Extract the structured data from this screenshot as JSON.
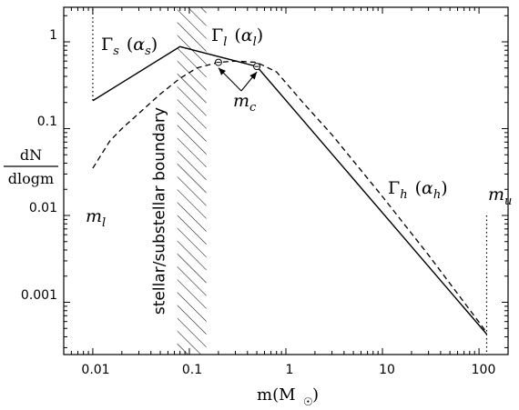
{
  "chart_data": {
    "type": "line",
    "xscale": "log",
    "yscale": "log",
    "xlim": [
      0.005,
      200
    ],
    "ylim": [
      0.00025,
      2.5
    ],
    "xticks": [
      {
        "value": 0.01,
        "label": "0.01"
      },
      {
        "value": 0.1,
        "label": "0.1"
      },
      {
        "value": 1,
        "label": "1"
      },
      {
        "value": 10,
        "label": "10"
      },
      {
        "value": 100,
        "label": "100"
      }
    ],
    "yticks": [
      {
        "value": 0.001,
        "label": "0.001"
      },
      {
        "value": 0.01,
        "label": "0.01"
      },
      {
        "value": 0.1,
        "label": "0.1"
      },
      {
        "value": 1,
        "label": "1"
      }
    ],
    "xlabel": "m(M",
    "xlabel_sub": "☉",
    "xlabel_close": ")",
    "ylabel_num": "dN",
    "ylabel_den": "dlogm",
    "series": [
      {
        "style": "solid",
        "x": [
          0.01,
          0.08,
          0.5,
          120
        ],
        "y": [
          0.21,
          0.88,
          0.52,
          0.00043
        ]
      },
      {
        "style": "dashed",
        "x": [
          0.01,
          0.015,
          0.02,
          0.03,
          0.05,
          0.08,
          0.12,
          0.2,
          0.3,
          0.5,
          0.8,
          1.5,
          3,
          10,
          30,
          120
        ],
        "y": [
          0.035,
          0.072,
          0.1,
          0.15,
          0.25,
          0.38,
          0.5,
          0.58,
          0.6,
          0.58,
          0.45,
          0.2,
          0.085,
          0.0165,
          0.0035,
          0.00045
        ]
      }
    ],
    "boundary": {
      "x_range": [
        0.075,
        0.15
      ],
      "label": "stellar/substellar boundary"
    },
    "vlines": [
      {
        "x": 0.01,
        "y_range": [
          0.01,
          0.21
        ],
        "label": "m",
        "label_sub": "l"
      },
      {
        "x": 120,
        "y_range": [
          0.00025,
          0.01
        ],
        "label": "m",
        "label_sub": "u"
      }
    ],
    "markers": [
      {
        "x": 0.2,
        "y": 0.58
      },
      {
        "x": 0.5,
        "y": 0.52
      }
    ],
    "annotations": [
      {
        "symbol": "Γ",
        "sub": "s",
        "param": "α",
        "param_sub": "s"
      },
      {
        "symbol": "Γ",
        "sub": "l",
        "param": "α",
        "param_sub": "l"
      },
      {
        "symbol": "Γ",
        "sub": "h",
        "param": "α",
        "param_sub": "h"
      },
      {
        "symbol": "m",
        "sub": "c"
      }
    ]
  }
}
